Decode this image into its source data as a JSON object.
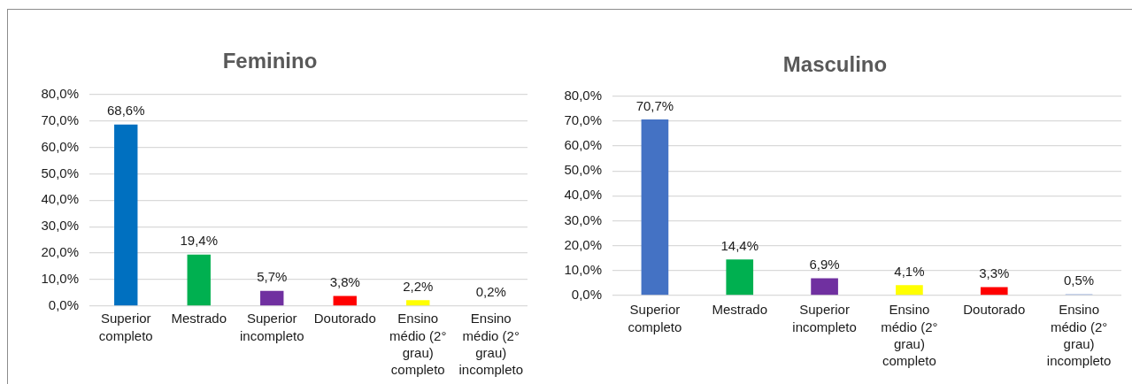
{
  "chart_data": [
    {
      "type": "bar",
      "title": "Feminino",
      "categories": [
        "Superior completo",
        "Mestrado",
        "Superior incompleto",
        "Doutorado",
        "Ensino médio (2° grau) completo",
        "Ensino médio (2° grau) incompleto"
      ],
      "values": [
        68.6,
        19.4,
        5.7,
        3.8,
        2.2,
        0.2
      ],
      "colors": [
        "#0070c0",
        "#00b050",
        "#7030a0",
        "#ff0000",
        "#ffff00",
        "#8faadc"
      ],
      "value_labels": [
        "68,6%",
        "19,4%",
        "5,7%",
        "3,8%",
        "2,2%",
        "0,2%"
      ],
      "ylim": [
        0,
        80
      ],
      "yticks": [
        {
          "value": 0,
          "label": "0,0%"
        },
        {
          "value": 10,
          "label": "10,0%"
        },
        {
          "value": 20,
          "label": "20,0%"
        },
        {
          "value": 30,
          "label": "30,0%"
        },
        {
          "value": 40,
          "label": "40,0%"
        },
        {
          "value": 50,
          "label": "50,0%"
        },
        {
          "value": 60,
          "label": "60,0%"
        },
        {
          "value": 70,
          "label": "70,0%"
        },
        {
          "value": 80,
          "label": "80,0%"
        }
      ],
      "grid": "y"
    },
    {
      "type": "bar",
      "title": "Masculino",
      "categories": [
        "Superior completo",
        "Mestrado",
        "Superior incompleto",
        "Ensino médio (2° grau) completo",
        "Doutorado",
        "Ensino médio (2° grau) incompleto"
      ],
      "values": [
        70.7,
        14.4,
        6.9,
        4.1,
        3.3,
        0.5
      ],
      "colors": [
        "#4472c4",
        "#00b050",
        "#7030a0",
        "#ffff00",
        "#ff0000",
        "#8faadc"
      ],
      "value_labels": [
        "70,7%",
        "14,4%",
        "6,9%",
        "4,1%",
        "3,3%",
        "0,5%"
      ],
      "ylim": [
        0,
        80
      ],
      "yticks": [
        {
          "value": 0,
          "label": "0,0%"
        },
        {
          "value": 10,
          "label": "10,0%"
        },
        {
          "value": 20,
          "label": "20,0%"
        },
        {
          "value": 30,
          "label": "30,0%"
        },
        {
          "value": 40,
          "label": "40,0%"
        },
        {
          "value": 50,
          "label": "50,0%"
        },
        {
          "value": 60,
          "label": "60,0%"
        },
        {
          "value": 70,
          "label": "70,0%"
        },
        {
          "value": 80,
          "label": "80,0%"
        }
      ],
      "grid": "y"
    }
  ]
}
